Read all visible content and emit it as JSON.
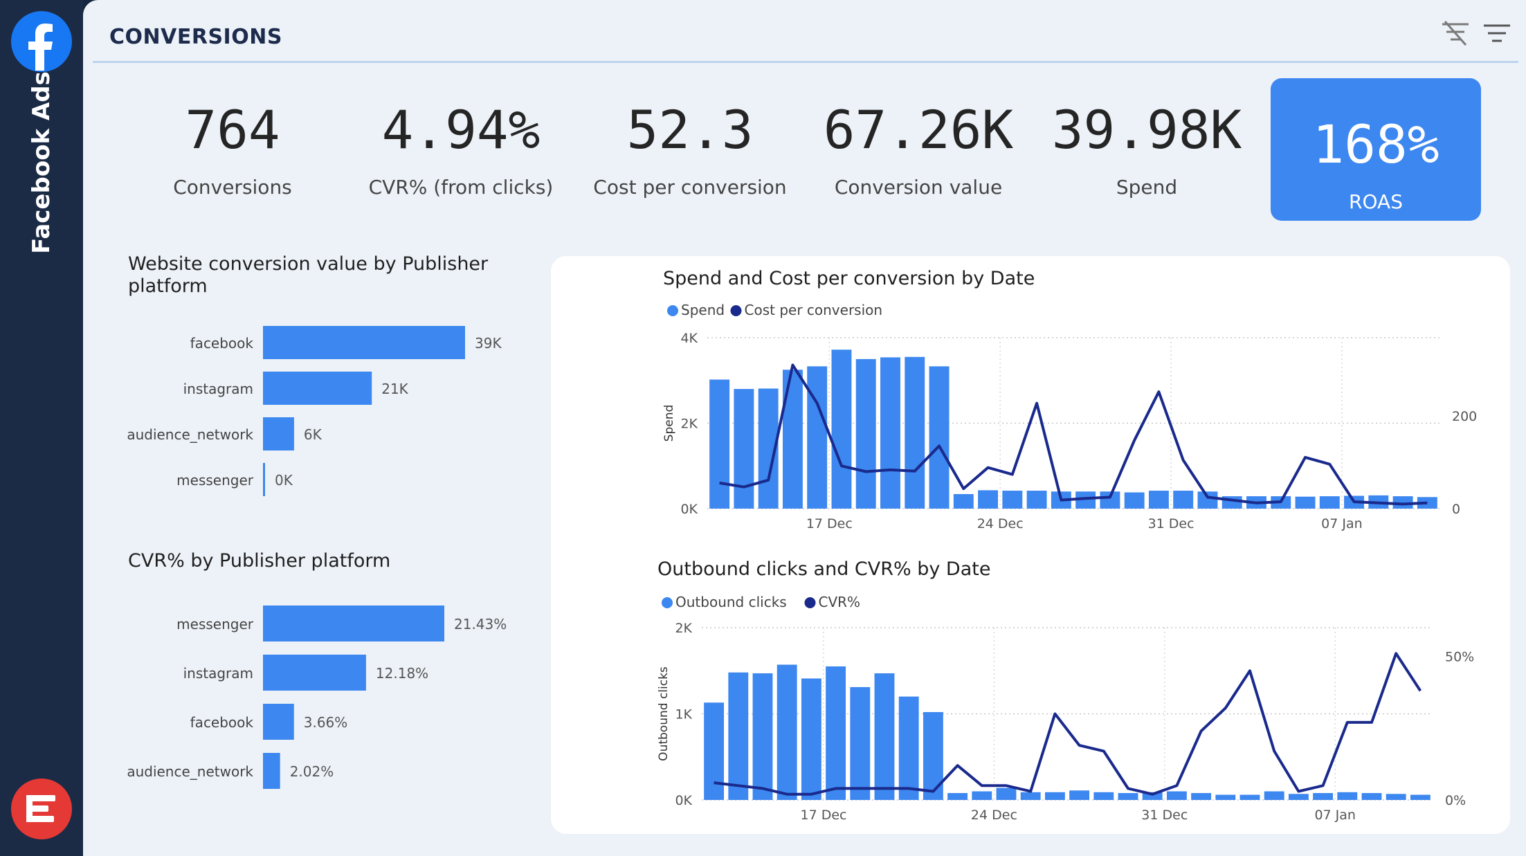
{
  "sidebar": {
    "title": "Facebook Ads",
    "logo_icon": "facebook-f-icon",
    "bottom_icon": "report-logo-icon"
  },
  "header": {
    "title": "CONVERSIONS",
    "icons": [
      "clear-filter-icon",
      "filter-icon"
    ]
  },
  "kpis": [
    {
      "value": "764",
      "label": "Conversions"
    },
    {
      "value": "4.94%",
      "label": "CVR% (from clicks)"
    },
    {
      "value": "52.3",
      "label": "Cost per conversion"
    },
    {
      "value": "67.26K",
      "label": "Conversion value"
    },
    {
      "value": "39.98K",
      "label": "Spend"
    },
    {
      "value": "168%",
      "label": "ROAS"
    }
  ],
  "colors": {
    "bar": "#3d87f0",
    "line": "#1a2a8c",
    "highlight": "#3d87f0",
    "sidebar": "#1b2b46"
  },
  "chart_data": [
    {
      "type": "bar",
      "title": "Website conversion value by Publisher platform",
      "categories": [
        "facebook",
        "instagram",
        "audience_network",
        "messenger"
      ],
      "values": [
        39,
        21,
        6,
        0.3
      ],
      "labels": [
        "39K",
        "21K",
        "6K",
        "0K"
      ]
    },
    {
      "type": "bar",
      "title": "CVR% by Publisher platform",
      "categories": [
        "messenger",
        "instagram",
        "facebook",
        "audience_network"
      ],
      "values": [
        21.43,
        12.18,
        3.66,
        2.02
      ],
      "labels": [
        "21.43%",
        "12.18%",
        "3.66%",
        "2.02%"
      ]
    },
    {
      "type": "bar",
      "title": "Spend and Cost per conversion by Date",
      "legend": [
        "Spend",
        "Cost per conversion"
      ],
      "ylabel": "Spend",
      "y2label": "Cost per conversion",
      "yticks": [
        "0K",
        "2K",
        "4K"
      ],
      "y2ticks": [
        "0",
        "200"
      ],
      "ylim": [
        0,
        4000
      ],
      "y2lim": [
        0,
        300
      ],
      "x_ticks": [
        {
          "label": "17 Dec",
          "index": 4.5
        },
        {
          "label": "24 Dec",
          "index": 11.5
        },
        {
          "label": "31 Dec",
          "index": 18.5
        },
        {
          "label": "07 Jan",
          "index": 25.5
        }
      ],
      "series": [
        {
          "name": "Spend",
          "type": "bar",
          "values": [
            3020,
            2800,
            2810,
            3250,
            3330,
            3720,
            3500,
            3540,
            3550,
            3330,
            340,
            430,
            420,
            420,
            400,
            400,
            400,
            380,
            420,
            420,
            400,
            290,
            290,
            290,
            280,
            290,
            300,
            310,
            290,
            270
          ]
        },
        {
          "name": "Cost per conversion",
          "type": "line",
          "values": [
            45,
            38,
            50,
            252,
            185,
            75,
            65,
            68,
            66,
            110,
            35,
            72,
            60,
            185,
            15,
            18,
            20,
            120,
            205,
            85,
            20,
            15,
            10,
            12,
            90,
            78,
            12,
            10,
            8,
            10
          ]
        }
      ]
    },
    {
      "type": "bar",
      "title": "Outbound clicks and CVR% by Date",
      "legend": [
        "Outbound clicks",
        "CVR%"
      ],
      "ylabel": "Outbound clicks",
      "y2label": "CVR%",
      "yticks": [
        "0K",
        "1K",
        "2K"
      ],
      "y2ticks": [
        "0%",
        "50%"
      ],
      "ylim": [
        0,
        2000
      ],
      "y2lim": [
        0,
        60
      ],
      "x_ticks": [
        {
          "label": "17 Dec",
          "index": 4.5
        },
        {
          "label": "24 Dec",
          "index": 11.5
        },
        {
          "label": "31 Dec",
          "index": 18.5
        },
        {
          "label": "07 Jan",
          "index": 25.5
        }
      ],
      "series": [
        {
          "name": "Outbound clicks",
          "type": "bar",
          "values": [
            1130,
            1480,
            1470,
            1570,
            1410,
            1550,
            1310,
            1470,
            1200,
            1020,
            80,
            100,
            140,
            90,
            90,
            110,
            90,
            80,
            90,
            100,
            80,
            60,
            60,
            100,
            70,
            80,
            90,
            80,
            70,
            60
          ]
        },
        {
          "name": "CVR%",
          "type": "line",
          "values": [
            6,
            5,
            4,
            2,
            2,
            4,
            4,
            4,
            4,
            3,
            12,
            5,
            5,
            3,
            30,
            19,
            17,
            4,
            2,
            5,
            24,
            32,
            45,
            17,
            3,
            5,
            27,
            27,
            51,
            38
          ]
        }
      ]
    }
  ]
}
